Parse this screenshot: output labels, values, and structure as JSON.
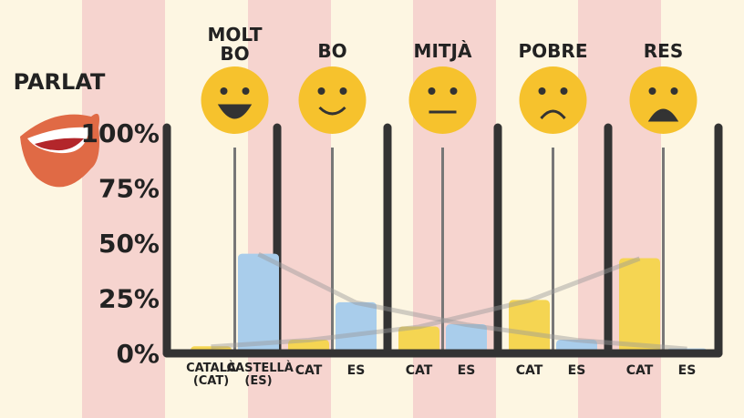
{
  "chart_data": {
    "type": "bar",
    "title": "PARLAT",
    "categories": [
      "MOLT BO",
      "BO",
      "MITJÀ",
      "POBRE",
      "RES"
    ],
    "series": [
      {
        "name": "CATALÀ (CAT)",
        "short_name": "CAT",
        "color": "#f5d552",
        "values": [
          3,
          6,
          12,
          24,
          43
        ]
      },
      {
        "name": "CASTELLÀ (ES)",
        "short_name": "ES",
        "color": "#a9cdeb",
        "values": [
          45,
          23,
          13,
          6,
          2
        ]
      }
    ],
    "ylim": [
      0,
      100
    ],
    "yticks": [
      {
        "value": 0,
        "label": "0%"
      },
      {
        "value": 25,
        "label": "25%"
      },
      {
        "value": 50,
        "label": "50%"
      },
      {
        "value": 75,
        "label": "75%"
      },
      {
        "value": 100,
        "label": "100%"
      }
    ]
  }
}
